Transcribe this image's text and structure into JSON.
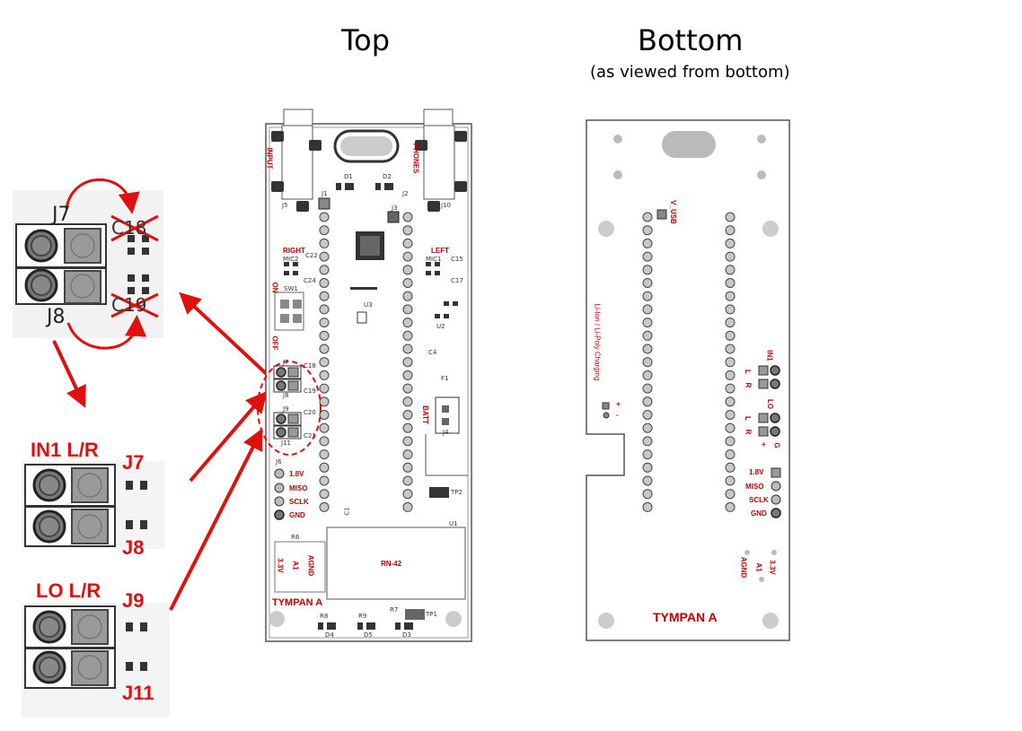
{
  "titles": {
    "top": "Top",
    "bottom": "Bottom",
    "bottom_note": "(as viewed from bottom)"
  },
  "zoom_top": {
    "j7": "J7",
    "j8": "J8",
    "c18": "C18",
    "c19": "C19"
  },
  "zoom_mid": {
    "group": "IN1 L/R",
    "j7": "J7",
    "j8": "J8"
  },
  "zoom_low": {
    "group": "LO L/R",
    "j9": "J9",
    "j11": "J11"
  },
  "top_board": {
    "input": "INPUT",
    "phones": "PHONES",
    "right": "RIGHT",
    "left": "LEFT",
    "mic2": "MIC2",
    "mic1": "MIC1",
    "on": "ON",
    "off": "OFF",
    "sw1": "SW1",
    "d1": "D1",
    "d2": "D2",
    "j1": "J1",
    "j2": "J2",
    "j3": "J3",
    "j5": "J5",
    "j10": "J10",
    "j7": "J7",
    "j8": "J8",
    "j9": "J9",
    "j11": "J11",
    "j6": "J6",
    "j4": "J4",
    "c22": "C22",
    "c24": "C24",
    "c15": "C15",
    "c17": "C17",
    "c18": "C18",
    "c19": "C19",
    "c20": "C20",
    "c21": "C21",
    "c4": "C4",
    "c1": "C1",
    "u2": "U2",
    "u3": "U3",
    "u1": "U1",
    "f1": "F1",
    "batt": "BATT",
    "tp1": "TP1",
    "tp2": "TP2",
    "r6": "R6",
    "r7": "R7",
    "r8": "R8",
    "r9": "R9",
    "d3": "D3",
    "d4": "D4",
    "d5": "D5",
    "v18": "1.8V",
    "miso": "MISO",
    "sclk": "SCLK",
    "gnd": "GND",
    "v33": "3.3V",
    "a1": "A1",
    "agnd": "AGND",
    "rn42": "RN-42",
    "brand": "TYMPAN A"
  },
  "bottom_board": {
    "v_usb": "V_USB",
    "charging": "Li-Ion / Li-Poly  Charging",
    "plus": "+",
    "minus": "-",
    "in1": "IN1",
    "lo": "LO",
    "l": "L",
    "r": "R",
    "g": "G",
    "v18": "1.8V",
    "miso": "MISO",
    "sclk": "SCLK",
    "gnd": "GND",
    "v33": "3.3V",
    "a1": "A1",
    "agnd": "AGND",
    "brand": "TYMPAN A"
  },
  "colors": {
    "annotation_red": "#e01010",
    "pcb_label_red": "#c00000",
    "jumper_gray": "#9a9a9a"
  }
}
